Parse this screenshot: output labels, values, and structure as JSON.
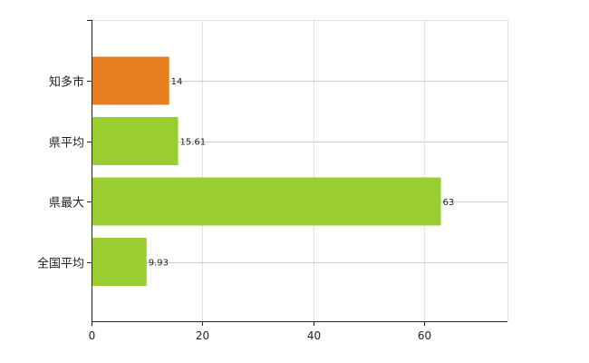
{
  "chart_data": {
    "type": "bar",
    "orientation": "horizontal",
    "categories": [
      "知多市",
      "県平均",
      "県最大",
      "全国平均"
    ],
    "values": [
      14,
      15.61,
      63,
      9.93
    ],
    "data_labels": [
      "14",
      "15.61",
      "63",
      "9.93"
    ],
    "bar_colors": [
      "#e67e22",
      "#9acd32",
      "#9acd32",
      "#9acd32"
    ],
    "highlight_color": "#e67e22",
    "default_color": "#9acd32",
    "xlim": [
      0,
      75
    ],
    "x_ticks": [
      0,
      20,
      40,
      60
    ],
    "x_tick_labels": [
      "0",
      "20",
      "40",
      "60"
    ],
    "grid": true,
    "grid_color": "#cccccc",
    "title": "",
    "xlabel": "",
    "ylabel": ""
  }
}
